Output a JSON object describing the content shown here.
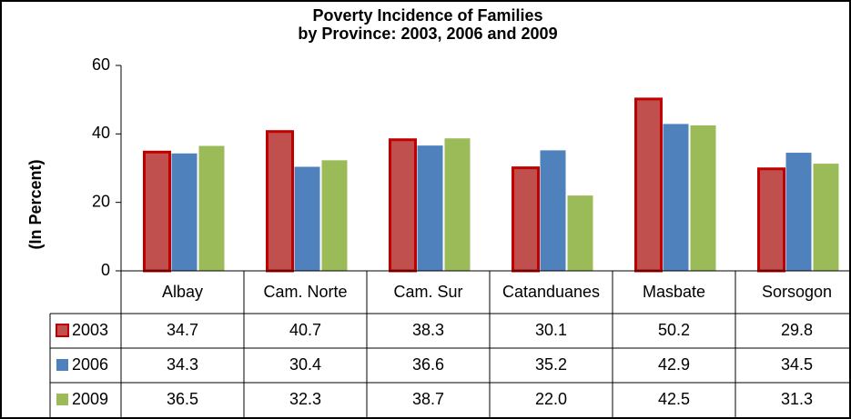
{
  "chart_data": {
    "type": "bar",
    "title": [
      "Poverty Incidence of Families",
      "by Province:  2003, 2006 and 2009"
    ],
    "y_label": "(In Percent)",
    "categories": [
      "Albay",
      "Cam. Norte",
      "Cam. Sur",
      "Catanduanes",
      "Masbate",
      "Sorsogon"
    ],
    "series": [
      {
        "name": "2003",
        "color": "#c0504d",
        "values": [
          34.7,
          40.7,
          38.3,
          30.1,
          50.2,
          29.8
        ]
      },
      {
        "name": "2006",
        "color": "#4f81bd",
        "values": [
          34.3,
          30.4,
          36.6,
          35.2,
          42.9,
          34.5
        ]
      },
      {
        "name": "2009",
        "color": "#9bbb59",
        "values": [
          36.5,
          32.3,
          38.7,
          22.0,
          42.5,
          31.3
        ],
        "value_labels": [
          "36.5",
          "32.3",
          "38.7",
          "22.0",
          "42.5",
          "31.3"
        ]
      }
    ],
    "ylim": [
      0,
      60
    ],
    "yticks": [
      0,
      20,
      40,
      60
    ],
    "grid": false,
    "data_table": true
  }
}
